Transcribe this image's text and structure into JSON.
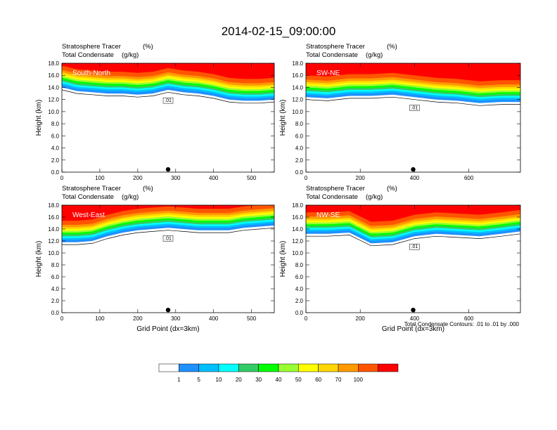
{
  "figure_title": "2014-02-15_09:00:00",
  "shaded_field": "Stratosphere Tracer",
  "shaded_units": "(%)",
  "contour_field": "Total Condensate",
  "contour_units": "(g/kg)",
  "xlabel": "Grid Point (dx=3km)",
  "ylabel": "Height (km)",
  "contour_footnote": "Total Condensate Contours: .01 to .01 by .000",
  "contour_label": ".01",
  "colorbar": {
    "levels": [
      "1",
      "5",
      "10",
      "20",
      "30",
      "40",
      "50",
      "60",
      "70",
      "100"
    ],
    "colors": [
      "#ffffff",
      "#1e90ff",
      "#00bfff",
      "#00ffff",
      "#33cc66",
      "#00ff00",
      "#99ff33",
      "#ffff00",
      "#ffd700",
      "#ff9900",
      "#ff5500",
      "#ff0000"
    ]
  },
  "chart_data": [
    {
      "type": "heatmap",
      "panel_label": "South-North",
      "xlim": [
        0,
        560
      ],
      "ylim": [
        0,
        18
      ],
      "xticks": [
        "0",
        "100",
        "200",
        "300",
        "400",
        "500"
      ],
      "yticks": [
        "0.0",
        "2.0",
        "4.0",
        "6.0",
        "8.0",
        "10.0",
        "12.0",
        "14.0",
        "16.0",
        "18.0"
      ],
      "marker_x": 280,
      "x_profile": [
        0,
        40,
        80,
        120,
        160,
        200,
        240,
        280,
        320,
        360,
        400,
        440,
        480,
        520,
        560
      ],
      "tracer_base_km": [
        14.0,
        13.4,
        13.2,
        13.0,
        13.0,
        12.8,
        13.0,
        13.6,
        13.2,
        13.0,
        12.6,
        12.0,
        11.8,
        11.8,
        12.0
      ]
    },
    {
      "type": "heatmap",
      "panel_label": "SW-NE",
      "xlim": [
        0,
        790
      ],
      "ylim": [
        0,
        18
      ],
      "xticks": [
        "0",
        "200",
        "400",
        "600"
      ],
      "yticks": [
        "0.0",
        "2.0",
        "4.0",
        "6.0",
        "8.0",
        "10.0",
        "12.0",
        "14.0",
        "16.0",
        "18.0"
      ],
      "marker_x": 395,
      "x_profile": [
        0,
        80,
        160,
        240,
        320,
        400,
        480,
        560,
        640,
        720,
        790
      ],
      "tracer_base_km": [
        12.4,
        12.2,
        12.6,
        12.6,
        12.8,
        12.4,
        12.0,
        11.8,
        11.4,
        11.6,
        11.6
      ]
    },
    {
      "type": "heatmap",
      "panel_label": "West-East",
      "xlim": [
        0,
        560
      ],
      "ylim": [
        0,
        18
      ],
      "xticks": [
        "0",
        "100",
        "200",
        "300",
        "400",
        "500"
      ],
      "yticks": [
        "0.0",
        "2.0",
        "4.0",
        "6.0",
        "8.0",
        "10.0",
        "12.0",
        "14.0",
        "16.0",
        "18.0"
      ],
      "marker_x": 280,
      "x_profile": [
        0,
        40,
        80,
        120,
        160,
        200,
        240,
        280,
        320,
        360,
        400,
        440,
        480,
        520,
        560
      ],
      "tracer_base_km": [
        11.8,
        11.8,
        12.0,
        12.8,
        13.4,
        13.8,
        14.0,
        14.2,
        14.0,
        13.8,
        13.8,
        13.8,
        14.2,
        14.4,
        14.6
      ]
    },
    {
      "type": "heatmap",
      "panel_label": "NW-SE",
      "xlim": [
        0,
        790
      ],
      "ylim": [
        0,
        18
      ],
      "xticks": [
        "0",
        "200",
        "400",
        "600"
      ],
      "yticks": [
        "0.0",
        "2.0",
        "4.0",
        "6.0",
        "8.0",
        "10.0",
        "12.0",
        "14.0",
        "16.0",
        "18.0"
      ],
      "marker_x": 395,
      "x_profile": [
        0,
        80,
        160,
        240,
        320,
        400,
        480,
        560,
        640,
        720,
        790
      ],
      "tracer_base_km": [
        13.2,
        13.2,
        13.4,
        11.6,
        11.8,
        12.8,
        13.2,
        13.0,
        12.8,
        13.2,
        13.6
      ]
    }
  ]
}
